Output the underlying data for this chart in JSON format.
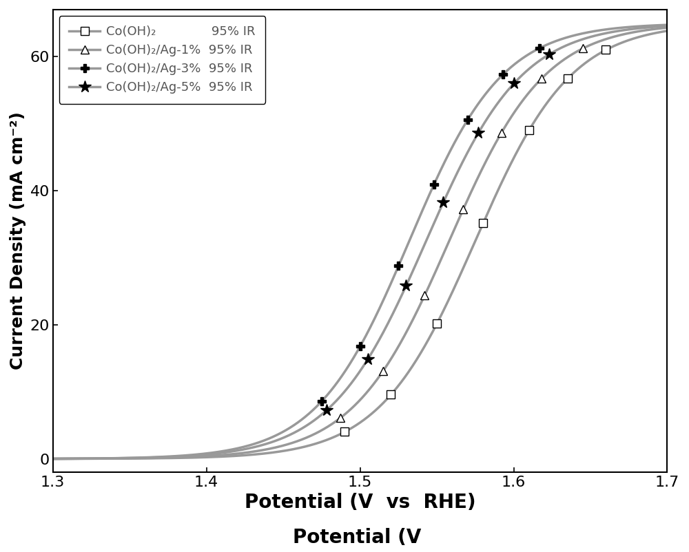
{
  "title": "",
  "xlabel": "Potential (V vs RHE)",
  "ylabel": "Current Density (mA cm⁻²)",
  "xlim": [
    1.3,
    1.7
  ],
  "ylim": [
    -2,
    65
  ],
  "xticks": [
    1.3,
    1.4,
    1.5,
    1.6,
    1.7
  ],
  "yticks": [
    0,
    20,
    40,
    60
  ],
  "series": [
    {
      "label": "Co(OH)₂",
      "label_suffix": "    95% IR",
      "color": "#999999",
      "marker": "s",
      "marker_color": "black",
      "marker_face": "white",
      "onset": 1.48,
      "steepness": 28.0,
      "shift": 0.0
    },
    {
      "label": "Co(OH)₂/Ag-1%",
      "label_suffix": " 95% IR",
      "color": "#999999",
      "marker": "^",
      "marker_color": "black",
      "marker_face": "white",
      "onset": 1.475,
      "steepness": 28.0,
      "shift": -0.018
    },
    {
      "label": "Co(OH)₂/Ag-3%",
      "label_suffix": " 95% IR",
      "color": "#999999",
      "marker": "P",
      "marker_color": "black",
      "marker_face": "black",
      "onset": 1.465,
      "steepness": 30.0,
      "shift": -0.037
    },
    {
      "label": "Co(OH)₂/Ag-5%",
      "label_suffix": " 95% IR",
      "color": "#999999",
      "marker": "*",
      "marker_color": "black",
      "marker_face": "black",
      "onset": 1.468,
      "steepness": 29.0,
      "shift": -0.025
    }
  ],
  "line_color": "#999999",
  "line_width": 2.5,
  "marker_size": 10,
  "legend_fontsize": 14,
  "axis_fontsize": 20,
  "tick_fontsize": 16
}
